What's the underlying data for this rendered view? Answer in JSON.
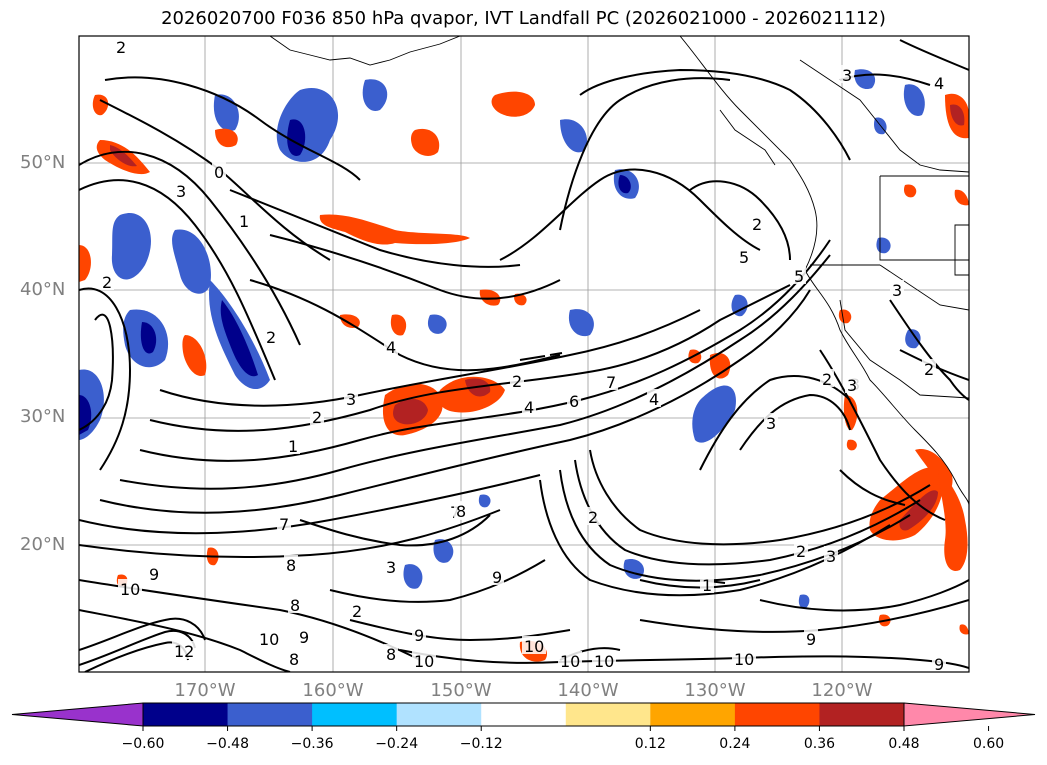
{
  "title": "2026020700 F036 850 hPa qvapor, IVT Landfall PC (2026021000 - 2026021112)",
  "map": {
    "lat_ticks": [
      "50°N",
      "40°N",
      "30°N",
      "20°N"
    ],
    "lon_ticks": [
      "170°W",
      "160°W",
      "150°W",
      "140°W",
      "130°W",
      "120°W"
    ],
    "contour_labels": [
      "2",
      "3",
      "0",
      "1",
      "3",
      "2",
      "5",
      "2",
      "4",
      "3",
      "2",
      "1",
      "2",
      "4",
      "6",
      "7",
      "4",
      "5",
      "2",
      "3",
      "7",
      "2",
      "3",
      "3",
      "2",
      "1",
      "2",
      "7",
      "8",
      "9",
      "8",
      "9",
      "10",
      "8",
      "9",
      "10",
      "8",
      "2",
      "3",
      "8",
      "9",
      "10",
      "12",
      "10",
      "10",
      "10",
      "10",
      "9",
      "9",
      "3",
      "2",
      "3",
      "4"
    ]
  },
  "colorbar": {
    "colors": [
      "#9932cc",
      "#00008b",
      "#3b5fce",
      "#00bfff",
      "#b0e2ff",
      "#ffffff",
      "#ffe68c",
      "#ffa500",
      "#ff4500",
      "#b22222",
      "#ff88aa"
    ],
    "tick_labels": [
      "−0.60",
      "−0.48",
      "−0.36",
      "−0.24",
      "−0.12",
      "0.12",
      "0.24",
      "0.36",
      "0.48",
      "0.60"
    ]
  }
}
